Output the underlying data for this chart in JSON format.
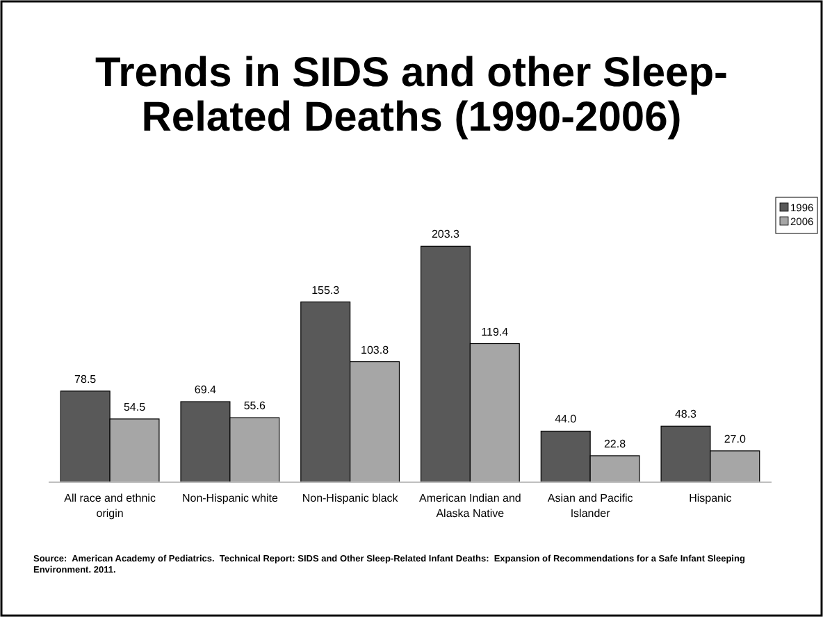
{
  "chart_data": {
    "type": "bar",
    "title": "Trends in SIDS and other Sleep-Related Deaths (1990-2006)",
    "categories": [
      "All race and ethnic origin",
      "Non-Hispanic white",
      "Non-Hispanic black",
      "American Indian and Alaska Native",
      "Asian and Pacific Islander",
      "Hispanic"
    ],
    "series": [
      {
        "name": "1996",
        "color": "#595959",
        "values": [
          78.5,
          69.4,
          155.3,
          203.3,
          44.0,
          48.3
        ],
        "value_labels": [
          "78.5",
          "69.4",
          "155.3",
          "203.3",
          "44.0",
          "48.3"
        ]
      },
      {
        "name": "2006",
        "color": "#a6a6a6",
        "values": [
          54.5,
          55.6,
          103.8,
          119.4,
          22.8,
          27.0
        ],
        "value_labels": [
          "54.5",
          "55.6",
          "103.8",
          "119.4",
          "22.8",
          "27.0"
        ]
      }
    ],
    "legend": "top right",
    "annotations": [
      "Source:  American Academy of Pediatrics.  Technical Report: SIDS and Other Sleep-Related Infant Deaths:  Expansion of Recommendations for a Safe Infant Sleeping Environment. 2011."
    ]
  }
}
